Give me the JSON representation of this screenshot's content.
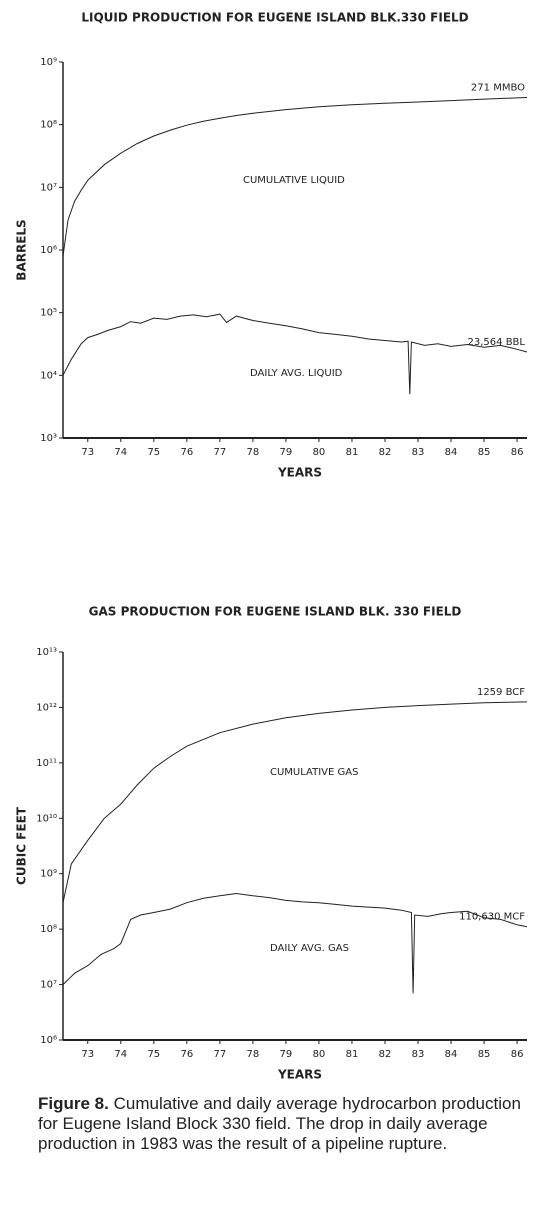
{
  "chart_data": [
    {
      "type": "line",
      "title": "LIQUID PRODUCTION FOR EUGENE ISLAND BLK.330 FIELD",
      "y_label": "BARRELS",
      "x_label": "YEARS",
      "log_y": true,
      "ylim": [
        1000,
        1000000000
      ],
      "yticks": [
        {
          "value": 1000000000,
          "label": "10⁹"
        },
        {
          "value": 100000000,
          "label": "10⁸"
        },
        {
          "value": 10000000,
          "label": "10⁷"
        },
        {
          "value": 1000000,
          "label": "10⁶"
        },
        {
          "value": 100000,
          "label": "10⁵"
        },
        {
          "value": 10000,
          "label": "10⁴"
        },
        {
          "value": 1000,
          "label": "10³"
        }
      ],
      "xlim": [
        72.25,
        86.3
      ],
      "xticks": [
        73,
        74,
        75,
        76,
        77,
        78,
        79,
        80,
        81,
        82,
        83,
        84,
        85,
        86
      ],
      "series": [
        {
          "name": "CUMULATIVE LIQUID",
          "color": "#222222",
          "x": [
            72.25,
            72.4,
            72.6,
            72.8,
            73,
            73.5,
            74,
            74.5,
            75,
            75.5,
            76,
            76.5,
            77,
            77.5,
            78,
            79,
            80,
            81,
            82,
            83,
            84,
            85,
            86.3
          ],
          "values": [
            800000,
            3000000,
            6000000,
            9000000,
            13000000,
            23000000,
            35000000,
            50000000,
            66000000,
            82000000,
            98000000,
            113000000,
            127000000,
            140000000,
            152000000,
            174000000,
            193000000,
            208000000,
            220000000,
            230000000,
            242000000,
            256000000,
            271000000
          ],
          "value_labels": [
            null,
            null,
            null,
            null,
            null,
            null,
            null,
            null,
            null,
            null,
            null,
            null,
            null,
            null,
            null,
            null,
            null,
            null,
            null,
            null,
            null,
            null,
            "271 MMBO"
          ]
        },
        {
          "name": "DAILY AVG. LIQUID",
          "color": "#222222",
          "x": [
            72.25,
            72.5,
            72.8,
            73,
            73.3,
            73.6,
            74,
            74.3,
            74.6,
            75,
            75.4,
            75.8,
            76.2,
            76.6,
            77,
            77.2,
            77.5,
            78,
            78.5,
            79,
            79.5,
            80,
            80.5,
            81,
            81.5,
            82,
            82.5,
            82.7,
            82.75,
            82.8,
            83.2,
            83.6,
            84,
            84.5,
            85,
            85.5,
            86,
            86.3
          ],
          "values": [
            10000,
            18000,
            32000,
            40000,
            45000,
            52000,
            60000,
            72000,
            68000,
            82000,
            78000,
            88000,
            92000,
            86000,
            95000,
            70000,
            88000,
            75000,
            68000,
            62000,
            55000,
            48000,
            45000,
            42000,
            38000,
            36000,
            34000,
            35000,
            5000,
            34000,
            30000,
            32000,
            29000,
            31000,
            28000,
            30000,
            26000,
            23564
          ],
          "value_labels": [
            null,
            null,
            null,
            null,
            null,
            null,
            null,
            null,
            null,
            null,
            null,
            null,
            null,
            null,
            null,
            null,
            null,
            null,
            null,
            null,
            null,
            null,
            null,
            null,
            null,
            null,
            null,
            null,
            null,
            null,
            null,
            null,
            null,
            null,
            null,
            null,
            null,
            "23,564 BBL"
          ]
        }
      ]
    },
    {
      "type": "line",
      "title": "GAS PRODUCTION FOR EUGENE ISLAND BLK. 330 FIELD",
      "y_label": "CUBIC FEET",
      "x_label": "YEARS",
      "log_y": true,
      "ylim": [
        1000000,
        10000000000000
      ],
      "yticks": [
        {
          "value": 10000000000000,
          "label": "10¹³"
        },
        {
          "value": 1000000000000,
          "label": "10¹²"
        },
        {
          "value": 100000000000,
          "label": "10¹¹"
        },
        {
          "value": 10000000000,
          "label": "10¹⁰"
        },
        {
          "value": 1000000000,
          "label": "10⁹"
        },
        {
          "value": 100000000,
          "label": "10⁸"
        },
        {
          "value": 10000000,
          "label": "10⁷"
        },
        {
          "value": 1000000,
          "label": "10⁶"
        }
      ],
      "xlim": [
        72.25,
        86.3
      ],
      "xticks": [
        73,
        74,
        75,
        76,
        77,
        78,
        79,
        80,
        81,
        82,
        83,
        84,
        85,
        86
      ],
      "series": [
        {
          "name": "CUMULATIVE GAS",
          "color": "#222222",
          "x": [
            72.25,
            72.5,
            73,
            73.5,
            74,
            74.5,
            75,
            75.5,
            76,
            77,
            78,
            79,
            80,
            81,
            82,
            83,
            84,
            85,
            86.3
          ],
          "values": [
            300000000,
            1500000000,
            4000000000,
            10000000000,
            18000000000,
            40000000000,
            80000000000,
            130000000000,
            200000000000,
            350000000000,
            500000000000,
            650000000000,
            780000000000,
            900000000000,
            1000000000000,
            1080000000000,
            1150000000000,
            1210000000000,
            1259000000000
          ],
          "value_labels": [
            null,
            null,
            null,
            null,
            null,
            null,
            null,
            null,
            null,
            null,
            null,
            null,
            null,
            null,
            null,
            null,
            null,
            null,
            "1259 BCF"
          ]
        },
        {
          "name": "DAILY AVG. GAS",
          "color": "#222222",
          "x": [
            72.25,
            72.6,
            73,
            73.4,
            73.8,
            74,
            74.3,
            74.6,
            75,
            75.5,
            76,
            76.5,
            77,
            77.5,
            78,
            78.5,
            79,
            79.5,
            80,
            80.5,
            81,
            81.5,
            82,
            82.5,
            82.8,
            82.85,
            82.9,
            83.3,
            83.7,
            84,
            84.5,
            85,
            85.5,
            86,
            86.3
          ],
          "values": [
            10000000,
            16000000,
            22000000,
            35000000,
            45000000,
            55000000,
            150000000,
            180000000,
            200000000,
            230000000,
            300000000,
            360000000,
            400000000,
            440000000,
            400000000,
            370000000,
            330000000,
            310000000,
            300000000,
            280000000,
            260000000,
            250000000,
            240000000,
            220000000,
            200000000,
            7000000,
            180000000,
            170000000,
            190000000,
            200000000,
            210000000,
            160000000,
            150000000,
            120000000,
            110630000
          ],
          "value_labels": [
            null,
            null,
            null,
            null,
            null,
            null,
            null,
            null,
            null,
            null,
            null,
            null,
            null,
            null,
            null,
            null,
            null,
            null,
            null,
            null,
            null,
            null,
            null,
            null,
            null,
            null,
            null,
            null,
            null,
            null,
            null,
            null,
            null,
            null,
            "110,630 MCF"
          ]
        }
      ]
    }
  ],
  "caption": {
    "label": "Figure 8.",
    "text": "Cumulative and daily average hydrocarbon production for Eugene Island Block 330 field. The drop in daily average production in 1983 was the result of a pipeline rupture."
  }
}
